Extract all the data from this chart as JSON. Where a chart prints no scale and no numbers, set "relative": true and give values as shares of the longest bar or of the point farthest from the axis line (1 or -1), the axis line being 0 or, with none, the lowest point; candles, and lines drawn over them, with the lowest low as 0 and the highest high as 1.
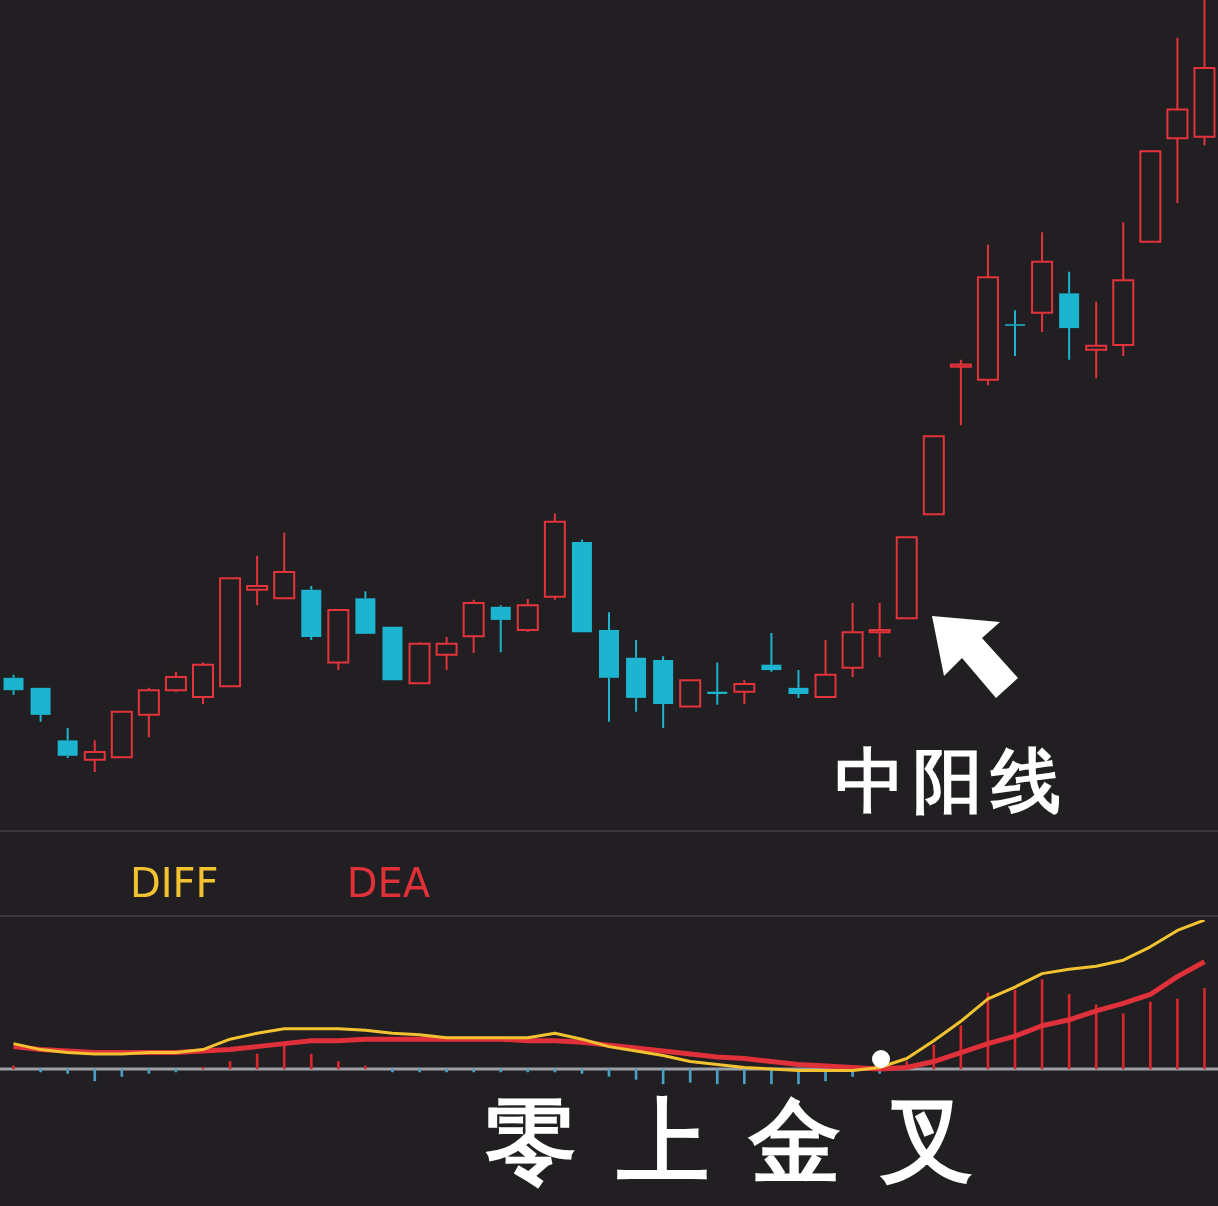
{
  "chart_data": [
    {
      "type": "candlestick",
      "relative": true,
      "categories": [
        null,
        null,
        null,
        null,
        null,
        null,
        null,
        null,
        null,
        null,
        null,
        null,
        null,
        null,
        null,
        null,
        null,
        null,
        null,
        null,
        null,
        null,
        null,
        null,
        null,
        null,
        null,
        null,
        null,
        null,
        null,
        null,
        null,
        null,
        null,
        null,
        null,
        null,
        null,
        null,
        null,
        null,
        null,
        null,
        null
      ],
      "ohlc": [
        [
          0.122,
          0.126,
          0.1,
          0.106
        ],
        [
          0.109,
          0.109,
          0.065,
          0.074
        ],
        [
          0.041,
          0.057,
          0.018,
          0.021
        ],
        [
          0.016,
          0.041,
          0,
          0.026
        ],
        [
          0.019,
          0.078,
          0.019,
          0.078
        ],
        [
          0.074,
          0.109,
          0.045,
          0.106
        ],
        [
          0.106,
          0.13,
          0.104,
          0.123
        ],
        [
          0.097,
          0.142,
          0.088,
          0.139
        ],
        [
          0.111,
          0.251,
          0.111,
          0.251
        ],
        [
          0.236,
          0.28,
          0.216,
          0.241
        ],
        [
          0.225,
          0.31,
          0.225,
          0.259
        ],
        [
          0.236,
          0.241,
          0.171,
          0.175
        ],
        [
          0.142,
          0.21,
          0.132,
          0.21
        ],
        [
          0.225,
          0.234,
          0.179,
          0.179
        ],
        [
          0.188,
          0.188,
          0.119,
          0.119
        ],
        [
          0.115,
          0.168,
          0.115,
          0.166
        ],
        [
          0.152,
          0.175,
          0.132,
          0.166
        ],
        [
          0.176,
          0.223,
          0.154,
          0.219
        ],
        [
          0.214,
          0.216,
          0.155,
          0.197
        ],
        [
          0.184,
          0.224,
          0.181,
          0.216
        ],
        [
          0.227,
          0.335,
          0.223,
          0.324
        ],
        [
          0.298,
          0.301,
          0.181,
          0.181
        ],
        [
          0.184,
          0.207,
          0.065,
          0.122
        ],
        [
          0.148,
          0.171,
          0.078,
          0.096
        ],
        [
          0.145,
          0.15,
          0.057,
          0.088
        ],
        [
          0.085,
          0.119,
          0.085,
          0.119
        ],
        [
          0.104,
          0.142,
          0.087,
          0.101
        ],
        [
          0.104,
          0.119,
          0.088,
          0.114
        ],
        [
          0.139,
          0.18,
          0.13,
          0.132
        ],
        [
          0.109,
          0.132,
          0.096,
          0.101
        ],
        [
          0.097,
          0.171,
          0.097,
          0.126
        ],
        [
          0.135,
          0.219,
          0.123,
          0.181
        ],
        [
          0.181,
          0.219,
          0.149,
          0.184
        ],
        [
          0.199,
          0.304,
          0.199,
          0.304
        ],
        [
          0.334,
          0.435,
          0.334,
          0.435
        ],
        [
          0.525,
          0.534,
          0.449,
          0.528
        ],
        [
          0.508,
          0.683,
          0.501,
          0.641
        ],
        [
          0.58,
          0.598,
          0.539,
          0.578
        ],
        [
          0.595,
          0.699,
          0.57,
          0.661
        ],
        [
          0.62,
          0.648,
          0.534,
          0.575
        ],
        [
          0.547,
          0.609,
          0.51,
          0.552
        ],
        [
          0.553,
          0.712,
          0.539,
          0.637
        ],
        [
          0.687,
          0.804,
          0.687,
          0.804
        ],
        [
          0.821,
          0.951,
          0.737,
          0.858
        ],
        [
          0.823,
          1,
          0.812,
          0.912
        ]
      ],
      "colors": [
        "#1db4cf",
        "#1db4cf",
        "#1db4cf",
        "#e5333c",
        "#e5333c",
        "#e5333c",
        "#e5333c",
        "#e5333c",
        "#e5333c",
        "#e5333c",
        "#e5333c",
        "#1db4cf",
        "#e5333c",
        "#1db4cf",
        "#1db4cf",
        "#e5333c",
        "#e5333c",
        "#e5333c",
        "#1db4cf",
        "#e5333c",
        "#e5333c",
        "#1db4cf",
        "#1db4cf",
        "#1db4cf",
        "#1db4cf",
        "#e5333c",
        "#1db4cf",
        "#e5333c",
        "#1db4cf",
        "#1db4cf",
        "#e5333c",
        "#e5333c",
        "#e5333c",
        "#e5333c",
        "#e5333c",
        "#e5333c",
        "#e5333c",
        "#1db4cf",
        "#e5333c",
        "#1db4cf",
        "#e5333c",
        "#e5333c",
        "#e5333c",
        "#e5333c",
        "#e5333c"
      ],
      "annotations": [
        "中阳线"
      ]
    },
    {
      "type": "line",
      "relative": true,
      "legend": "top left",
      "categories": [
        null,
        null,
        null,
        null,
        null,
        null,
        null,
        null,
        null,
        null,
        null,
        null,
        null,
        null,
        null,
        null,
        null,
        null,
        null,
        null,
        null,
        null,
        null,
        null,
        null,
        null,
        null,
        null,
        null,
        null,
        null,
        null,
        null,
        null,
        null,
        null,
        null,
        null,
        null,
        null,
        null,
        null,
        null,
        null,
        null
      ],
      "series": [
        {
          "name": "DIFF",
          "color": "#f2c230",
          "values": [
            0.17,
            0.13,
            0.11,
            0.1,
            0.1,
            0.11,
            0.11,
            0.13,
            0.2,
            0.24,
            0.27,
            0.27,
            0.27,
            0.26,
            0.24,
            0.23,
            0.21,
            0.21,
            0.21,
            0.21,
            0.24,
            0.2,
            0.15,
            0.12,
            0.09,
            0.05,
            0.03,
            0.01,
            0,
            -0.01,
            -0.01,
            -0.01,
            0.01,
            0.07,
            0.19,
            0.32,
            0.47,
            0.55,
            0.64,
            0.67,
            0.69,
            0.73,
            0.82,
            0.93,
            1
          ]
        },
        {
          "name": "DEA",
          "color": "#e0303a",
          "values": [
            0.15,
            0.13,
            0.12,
            0.11,
            0.11,
            0.11,
            0.11,
            0.12,
            0.13,
            0.15,
            0.17,
            0.19,
            0.19,
            0.2,
            0.2,
            0.2,
            0.2,
            0.2,
            0.2,
            0.19,
            0.19,
            0.18,
            0.16,
            0.14,
            0.12,
            0.1,
            0.08,
            0.07,
            0.05,
            0.03,
            0.02,
            0.01,
            0,
            0.01,
            0.05,
            0.11,
            0.17,
            0.22,
            0.29,
            0.33,
            0.39,
            0.44,
            0.5,
            0.62,
            0.72
          ]
        },
        {
          "type": "bar",
          "colors": [
            "#d9262e",
            "#4a9fc4",
            "#4a9fc4",
            "#4a9fc4",
            "#4a9fc4",
            "#4a9fc4",
            "#4a9fc4",
            "#d9262e",
            "#d9262e",
            "#d9262e",
            "#d9262e",
            "#d9262e",
            "#d9262e",
            "#d9262e",
            "#4a9fc4",
            "#4a9fc4",
            "#4a9fc4",
            "#4a9fc4",
            "#4a9fc4",
            "#4a9fc4",
            "#4a9fc4",
            "#4a9fc4",
            "#4a9fc4",
            "#4a9fc4",
            "#4a9fc4",
            "#4a9fc4",
            "#4a9fc4",
            "#4a9fc4",
            "#4a9fc4",
            "#4a9fc4",
            "#4a9fc4",
            "#4a9fc4",
            "#4a9fc4",
            "#d9262e",
            "#d9262e",
            "#d9262e",
            "#d9262e",
            "#d9262e",
            "#d9262e",
            "#d9262e",
            "#d9262e",
            "#d9262e",
            "#d9262e",
            "#d9262e",
            "#d9262e"
          ],
          "values": [
            0.02,
            -0.02,
            -0.03,
            -0.08,
            -0.05,
            -0.03,
            -0.02,
            0.01,
            0.05,
            0.1,
            0.17,
            0.1,
            0.05,
            0.02,
            -0.02,
            -0.02,
            -0.02,
            -0.02,
            -0.02,
            -0.02,
            -0.02,
            -0.03,
            -0.05,
            -0.07,
            -0.1,
            -0.09,
            -0.1,
            -0.1,
            -0.1,
            -0.1,
            -0.08,
            -0.05,
            -0.03,
            0.05,
            0.16,
            0.29,
            0.51,
            0.53,
            0.6,
            0.5,
            0.43,
            0.37,
            0.45,
            0.47,
            0.54
          ]
        }
      ],
      "annotations": [
        "零上金叉"
      ]
    }
  ]
}
